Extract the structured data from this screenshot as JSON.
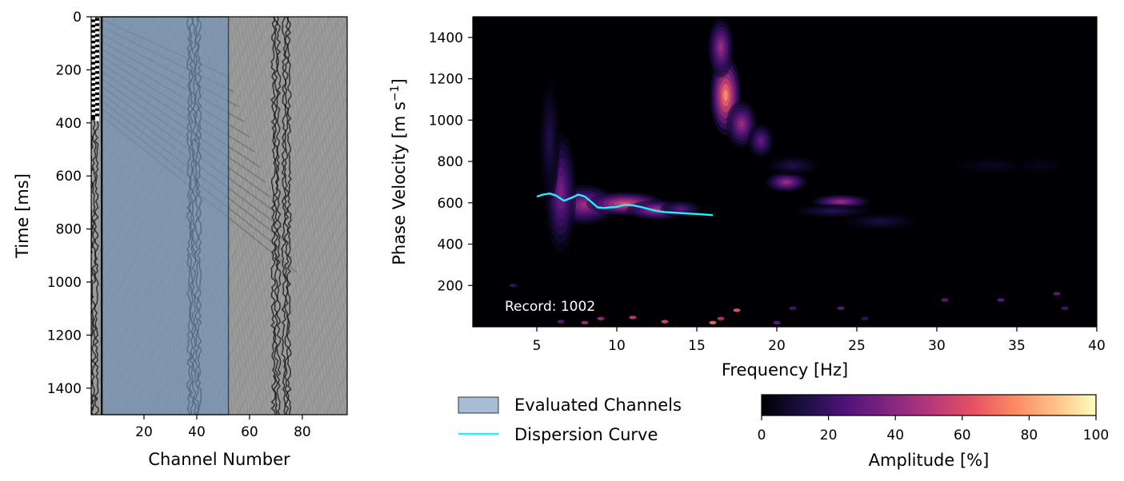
{
  "chart_data": [
    {
      "type": "heatmap",
      "subtype": "seismic-shot-gather",
      "xlabel": "Channel Number",
      "ylabel": "Time [ms]",
      "xlim": [
        0,
        97
      ],
      "ylim": [
        1500,
        0
      ],
      "x_ticks": [
        20,
        40,
        60,
        80
      ],
      "y_ticks": [
        0,
        200,
        400,
        600,
        800,
        1000,
        1200,
        1400
      ],
      "colormap": "gray",
      "evaluated_channels_range": [
        4,
        52
      ],
      "evaluated_channels_color": "#6f95bc",
      "source_channel_line": 4,
      "noisy_channels": [
        38,
        40,
        70,
        74
      ]
    },
    {
      "type": "heatmap",
      "subtype": "dispersion-image",
      "xlabel": "Frequency [Hz]",
      "ylabel": "Phase Velocity [m s⁻¹]",
      "ylabel_main": "Phase Velocity [m s",
      "ylabel_sup": "−1",
      "ylabel_end": "]",
      "xlim": [
        1,
        40
      ],
      "ylim": [
        0,
        1500
      ],
      "x_ticks": [
        5,
        10,
        15,
        20,
        25,
        30,
        35,
        40
      ],
      "y_ticks": [
        200,
        400,
        600,
        800,
        1000,
        1200,
        1400
      ],
      "colormap": "magma",
      "annotation": "Record: 1002",
      "dispersion_curve": {
        "name": "Dispersion Curve",
        "color": "#1ff0ff",
        "x": [
          5.0,
          5.4,
          5.8,
          6.2,
          6.7,
          7.2,
          7.6,
          8.0,
          8.4,
          8.8,
          9.2,
          9.6,
          10.0,
          10.5,
          11.0,
          11.5,
          12.0,
          12.5,
          13.0,
          13.5,
          14.0,
          14.5,
          15.0,
          15.5,
          16.0
        ],
        "y": [
          630,
          640,
          645,
          635,
          610,
          625,
          640,
          630,
          605,
          578,
          575,
          578,
          580,
          590,
          588,
          580,
          570,
          560,
          555,
          553,
          550,
          548,
          546,
          543,
          540
        ]
      },
      "energy_blobs": [
        {
          "f": 8.0,
          "v": 590,
          "sf": 1.2,
          "sv": 60,
          "a": 0.55
        },
        {
          "f": 10.5,
          "v": 595,
          "sf": 1.5,
          "sv": 35,
          "a": 0.78
        },
        {
          "f": 12.5,
          "v": 565,
          "sf": 1.2,
          "sv": 30,
          "a": 0.6
        },
        {
          "f": 14.0,
          "v": 570,
          "sf": 0.8,
          "sv": 25,
          "a": 0.35
        },
        {
          "f": 6.5,
          "v": 650,
          "sf": 0.6,
          "sv": 180,
          "a": 0.45
        },
        {
          "f": 5.8,
          "v": 900,
          "sf": 0.4,
          "sv": 180,
          "a": 0.18
        },
        {
          "f": 16.8,
          "v": 1120,
          "sf": 0.6,
          "sv": 120,
          "a": 0.95
        },
        {
          "f": 16.5,
          "v": 1350,
          "sf": 0.5,
          "sv": 90,
          "a": 0.55
        },
        {
          "f": 17.8,
          "v": 980,
          "sf": 0.6,
          "sv": 70,
          "a": 0.55
        },
        {
          "f": 19.0,
          "v": 900,
          "sf": 0.5,
          "sv": 50,
          "a": 0.4
        },
        {
          "f": 20.6,
          "v": 700,
          "sf": 0.8,
          "sv": 30,
          "a": 0.55
        },
        {
          "f": 24.0,
          "v": 605,
          "sf": 1.1,
          "sv": 22,
          "a": 0.55
        },
        {
          "f": 23.5,
          "v": 560,
          "sf": 1.5,
          "sv": 20,
          "a": 0.2
        },
        {
          "f": 26.5,
          "v": 510,
          "sf": 1.4,
          "sv": 25,
          "a": 0.15
        },
        {
          "f": 21.0,
          "v": 780,
          "sf": 1.0,
          "sv": 30,
          "a": 0.18
        },
        {
          "f": 33.5,
          "v": 780,
          "sf": 1.5,
          "sv": 25,
          "a": 0.08
        },
        {
          "f": 36.5,
          "v": 780,
          "sf": 1.0,
          "sv": 25,
          "a": 0.06
        }
      ],
      "spots": [
        {
          "f": 16.0,
          "v": 20,
          "a": 0.7
        },
        {
          "f": 17.5,
          "v": 80,
          "a": 0.65
        },
        {
          "f": 13.0,
          "v": 25,
          "a": 0.6
        },
        {
          "f": 11.0,
          "v": 45,
          "a": 0.55
        },
        {
          "f": 9.0,
          "v": 40,
          "a": 0.45
        },
        {
          "f": 8.0,
          "v": 20,
          "a": 0.45
        },
        {
          "f": 16.5,
          "v": 40,
          "a": 0.5
        },
        {
          "f": 20.0,
          "v": 20,
          "a": 0.3
        },
        {
          "f": 21.0,
          "v": 90,
          "a": 0.25
        },
        {
          "f": 24.0,
          "v": 90,
          "a": 0.3
        },
        {
          "f": 25.5,
          "v": 40,
          "a": 0.2
        },
        {
          "f": 30.5,
          "v": 130,
          "a": 0.3
        },
        {
          "f": 34.0,
          "v": 130,
          "a": 0.3
        },
        {
          "f": 37.5,
          "v": 160,
          "a": 0.3
        },
        {
          "f": 38.0,
          "v": 90,
          "a": 0.25
        },
        {
          "f": 3.5,
          "v": 200,
          "a": 0.2
        },
        {
          "f": 6.5,
          "v": 25,
          "a": 0.3
        }
      ]
    }
  ],
  "legend": {
    "evaluated_label": "Evaluated Channels",
    "curve_label": "Dispersion Curve"
  },
  "colorbar": {
    "label": "Amplitude [%]",
    "ticks": [
      0,
      20,
      40,
      60,
      80,
      100
    ],
    "colormap": "magma"
  }
}
